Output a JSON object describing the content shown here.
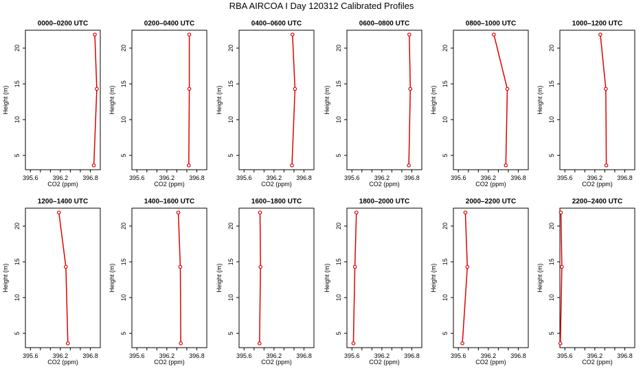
{
  "page": {
    "title": "RBA AIRCOA I  Day 120312  Calibrated Profiles"
  },
  "chart_data": {
    "type": "line",
    "title": "RBA AIRCOA I  Day 120312  Calibrated Profiles",
    "xlabel": "CO2 (ppm)",
    "ylabel": "Height (m)",
    "xlim": [
      395.5,
      397.0
    ],
    "ylim": [
      3,
      22.5
    ],
    "xticks": [
      395.6,
      396.2,
      396.8
    ],
    "xtick_labels": [
      "395.6",
      "396.2",
      "396.8"
    ],
    "yticks": [
      5,
      10,
      15,
      20
    ],
    "ytick_labels": [
      "5",
      "10",
      "15",
      "20"
    ],
    "heights": [
      3.6,
      14.3,
      21.9
    ],
    "line_color": "#dd0000",
    "panels": [
      {
        "label": "0000–0200 UTC",
        "values": [
          396.87,
          396.93,
          396.89
        ]
      },
      {
        "label": "0200–0400 UTC",
        "values": [
          396.64,
          396.65,
          396.65
        ]
      },
      {
        "label": "0400–0600 UTC",
        "values": [
          396.56,
          396.62,
          396.57
        ]
      },
      {
        "label": "0600–0800 UTC",
        "values": [
          396.74,
          396.77,
          396.75
        ]
      },
      {
        "label": "0800–1000 UTC",
        "values": [
          396.55,
          396.58,
          396.31
        ]
      },
      {
        "label": "1000–1200 UTC",
        "values": [
          396.43,
          396.42,
          396.31
        ]
      },
      {
        "label": "1200–1400 UTC",
        "values": [
          396.35,
          396.31,
          396.17
        ]
      },
      {
        "label": "1400–1600 UTC",
        "values": [
          396.48,
          396.47,
          396.43
        ]
      },
      {
        "label": "1600–1800 UTC",
        "values": [
          395.91,
          395.93,
          395.92
        ]
      },
      {
        "label": "1800–2000 UTC",
        "values": [
          395.63,
          395.66,
          395.69
        ]
      },
      {
        "label": "2000–2200 UTC",
        "values": [
          395.68,
          395.78,
          395.74
        ]
      },
      {
        "label": "2200–2400 UTC",
        "values": [
          395.51,
          395.54,
          395.52
        ]
      }
    ]
  }
}
